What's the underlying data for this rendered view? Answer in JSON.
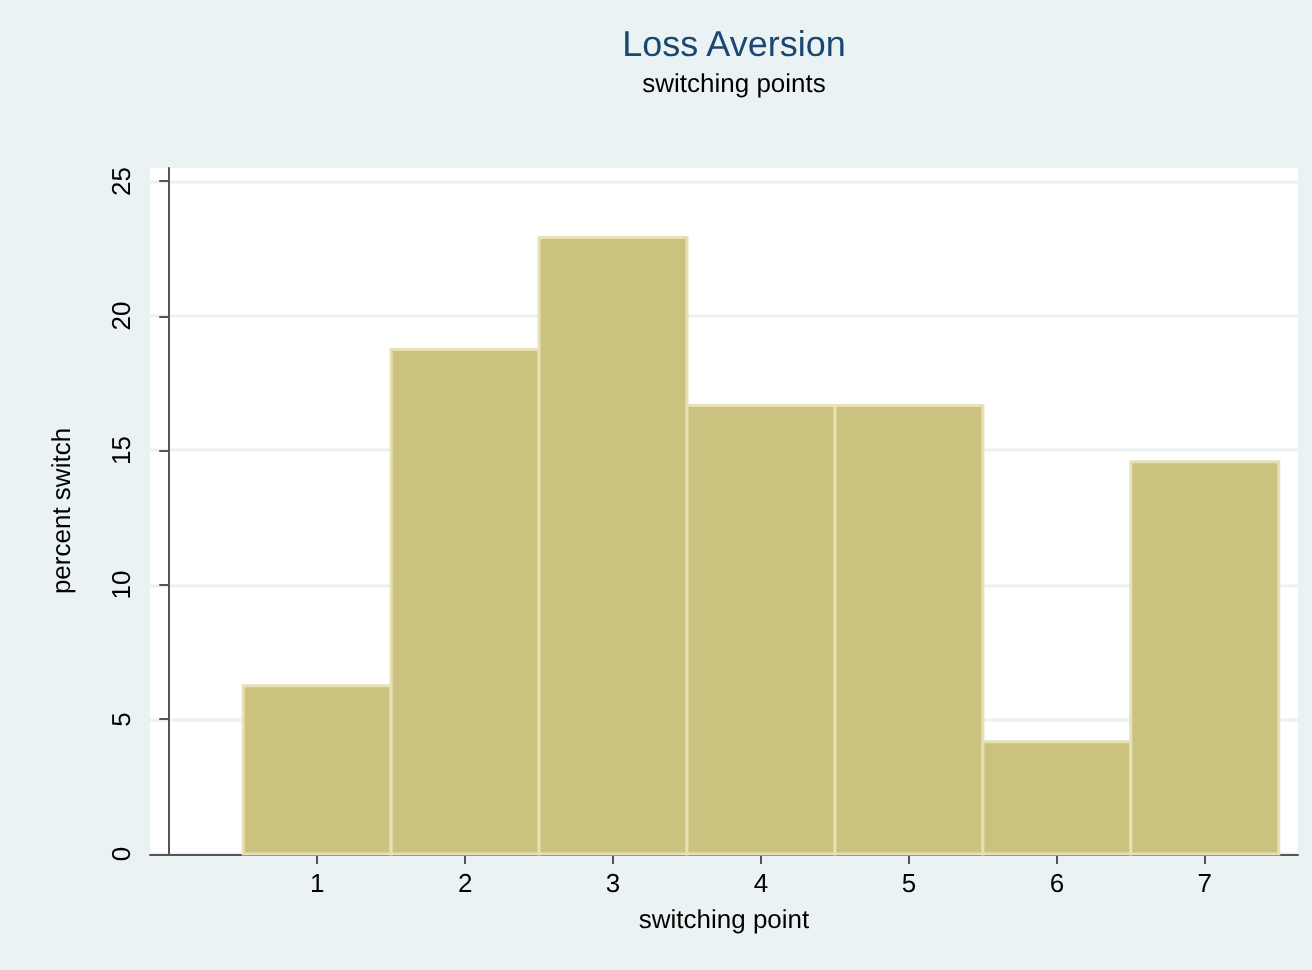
{
  "chart_data": {
    "type": "histogram",
    "title": "Loss Aversion",
    "subtitle": "switching points",
    "xlabel": "switching point",
    "ylabel": "percent switch",
    "bins": [
      0.5,
      1.5,
      2.5,
      3.5,
      4.5,
      5.5,
      6.5,
      7.5
    ],
    "values": [
      6.25,
      18.75,
      22.92,
      16.67,
      16.67,
      4.17,
      14.58
    ],
    "color": "#cbc27f",
    "xlim": [
      -0.13,
      7.63
    ],
    "xticks": [
      1,
      2,
      3,
      4,
      5,
      6,
      7
    ],
    "ylim": [
      0,
      25.5
    ],
    "yticks": [
      0,
      5,
      10,
      15,
      20,
      25
    ],
    "grid": "y"
  }
}
